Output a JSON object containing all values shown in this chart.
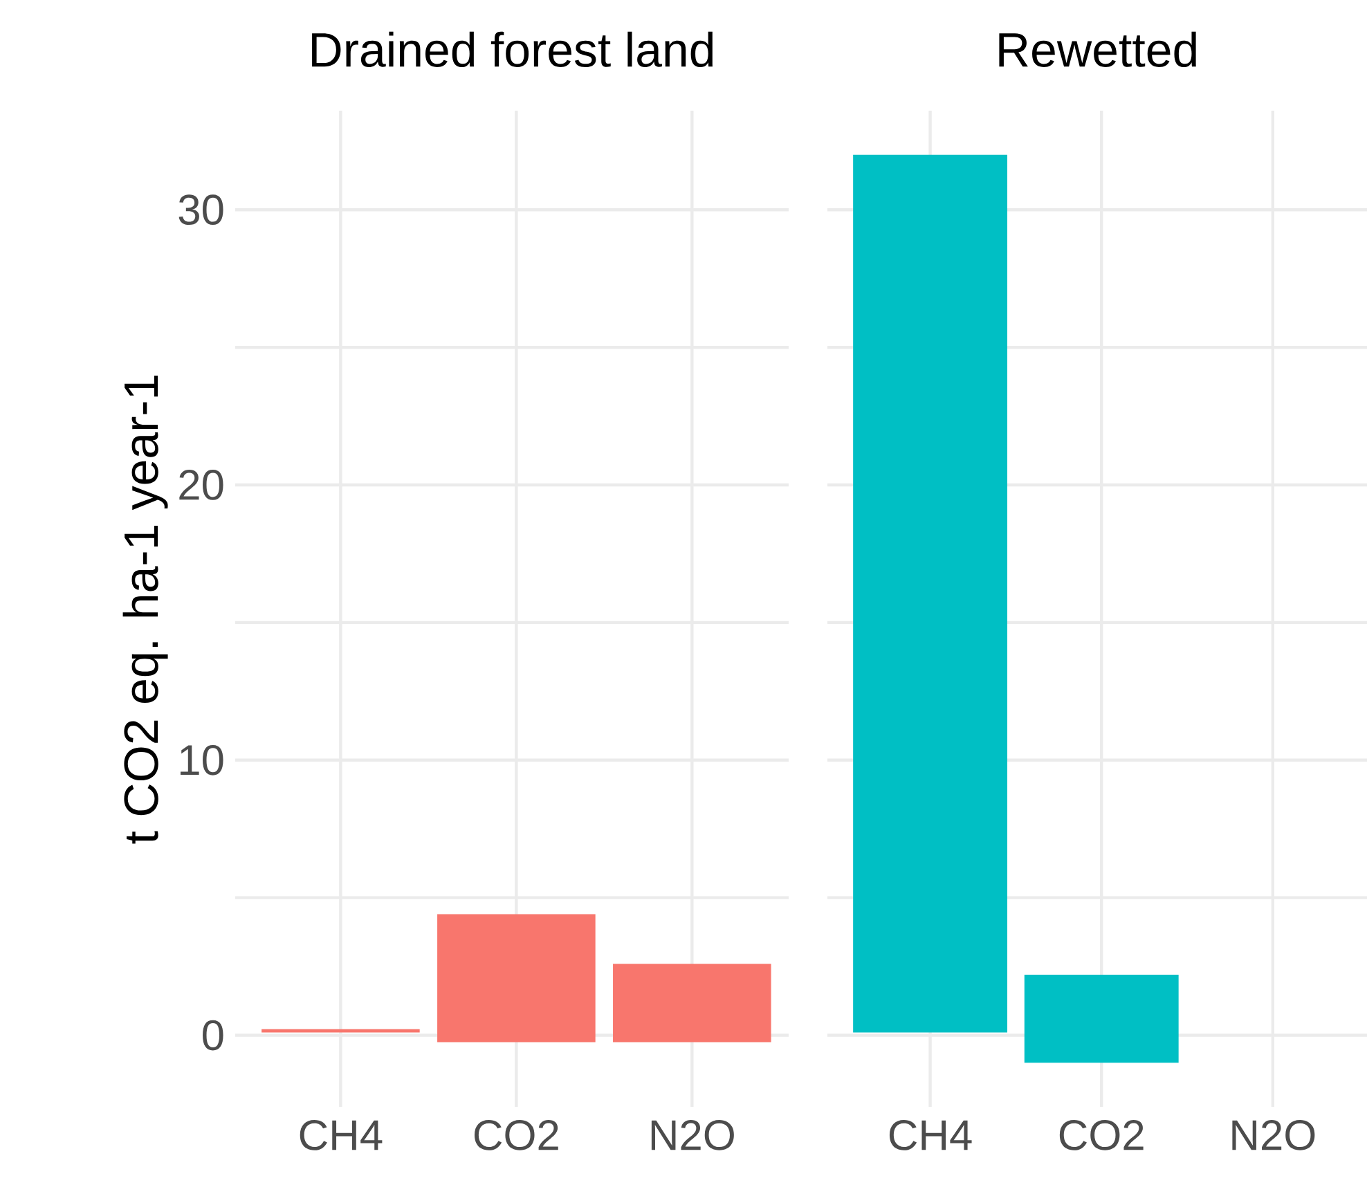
{
  "chart_data": [
    {
      "type": "bar",
      "title": "Drained forest land",
      "ylabel": "t CO2 eq. ha-1 year-1",
      "categories": [
        "CH4",
        "CO2",
        "N2O"
      ],
      "values": [
        0.12,
        4.65,
        2.85
      ],
      "base": [
        0.1,
        -0.25,
        -0.25
      ],
      "color": "#f8766d",
      "ylim": [
        -2.6,
        33.6
      ],
      "yticks": [
        0,
        {
          "value": 5,
          "label": null
        },
        10,
        {
          "value": 15,
          "label": null
        },
        20,
        {
          "value": 25,
          "label": null
        },
        30
      ],
      "grid": true
    },
    {
      "type": "bar",
      "title": "Rewetted",
      "categories": [
        "CH4",
        "CO2",
        "N2O"
      ],
      "values": [
        31.9,
        3.2,
        null
      ],
      "base": [
        0.1,
        -1.0,
        null
      ],
      "color": "#00bfc4",
      "ylim": [
        -2.6,
        33.6
      ],
      "yticks": [
        0,
        {
          "value": 5,
          "label": null
        },
        10,
        {
          "value": 15,
          "label": null
        },
        20,
        {
          "value": 25,
          "label": null
        },
        30
      ],
      "grid": true,
      "tick_labels": "x"
    }
  ]
}
